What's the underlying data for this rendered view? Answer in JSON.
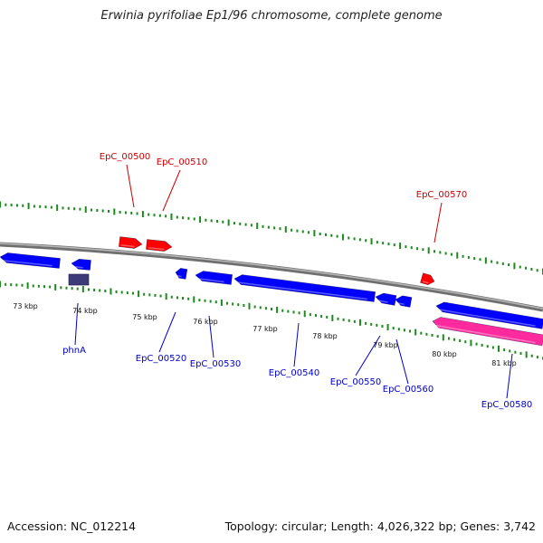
{
  "title": "Erwinia pyrifoliae Ep1/96 chromosome, complete genome",
  "footer": {
    "accession": "Accession: NC_012214",
    "summary": "Topology: circular; Length: 4,026,322 bp; Genes: 3,742"
  },
  "colors": {
    "forward_gene": "#ff0000",
    "reverse_gene": "#0000ff",
    "named_gene": "#3d3a7a",
    "rna_feature": "#ff2a9d",
    "tick": "#1a8a1a",
    "backbone": "#8c8c8c",
    "forward_label": "#cc0000",
    "reverse_label": "#0000cc"
  },
  "kbp_labels": [
    "73 kbp",
    "74 kbp",
    "75 kbp",
    "76 kbp",
    "77 kbp",
    "78 kbp",
    "79 kbp",
    "80 kbp",
    "81 kbp"
  ],
  "forward_genes": [
    {
      "label": "EpC_00500"
    },
    {
      "label": "EpC_00510"
    },
    {
      "label": "EpC_00570"
    }
  ],
  "reverse_genes": [
    {
      "label": "phnA"
    },
    {
      "label": "EpC_00520"
    },
    {
      "label": "EpC_00530"
    },
    {
      "label": "EpC_00540"
    },
    {
      "label": "EpC_00550"
    },
    {
      "label": "EpC_00560"
    },
    {
      "label": "EpC_00580"
    }
  ]
}
